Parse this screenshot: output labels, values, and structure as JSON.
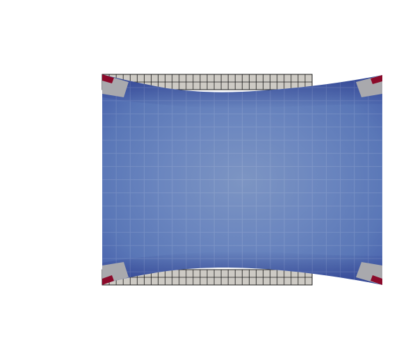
{
  "scene": {
    "description_colors": {
      "background": "#ffffff",
      "mesh_fill": "#cdcac4",
      "mesh_line": "#1a1a1a",
      "field_center": "#7b93c2",
      "field_mid": "#5b78b8",
      "field_edge": "#34479a",
      "field_dark": "#2b3a8a",
      "corner_gray": "#a9a9ad",
      "corner_red": "#8b0a2a"
    },
    "mesh": {
      "columns": 30,
      "rows": 2
    }
  }
}
